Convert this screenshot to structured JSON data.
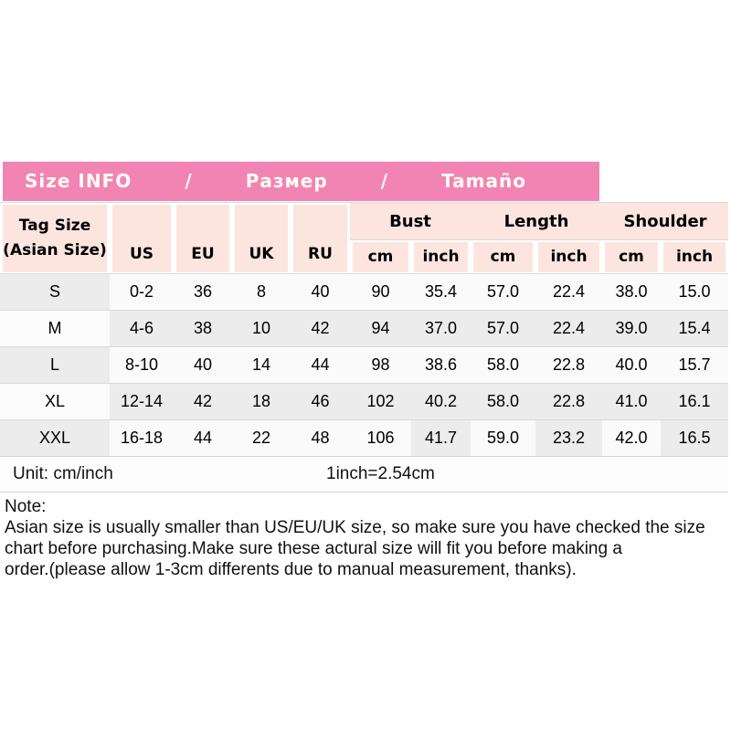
{
  "title_bar": {
    "parts": [
      "Size INFO",
      "/",
      "Размер",
      "/",
      "Tamaño"
    ]
  },
  "table": {
    "corner_header": "Tag Size\n(Asian Size)",
    "size_columns": [
      "US",
      "EU",
      "UK",
      "RU"
    ],
    "groups": [
      "Bust",
      "Length",
      "Shoulder"
    ],
    "sub_headers": [
      "cm",
      "inch",
      "cm",
      "inch",
      "cm",
      "inch"
    ],
    "rows": [
      [
        "S",
        "0-2",
        "36",
        "8",
        "40",
        "90",
        "35.4",
        "57.0",
        "22.4",
        "38.0",
        "15.0"
      ],
      [
        "M",
        "4-6",
        "38",
        "10",
        "42",
        "94",
        "37.0",
        "57.0",
        "22.4",
        "39.0",
        "15.4"
      ],
      [
        "L",
        "8-10",
        "40",
        "14",
        "44",
        "98",
        "38.6",
        "58.0",
        "22.8",
        "40.0",
        "15.7"
      ],
      [
        "XL",
        "12-14",
        "42",
        "18",
        "46",
        "102",
        "40.2",
        "58.0",
        "22.8",
        "41.0",
        "16.1"
      ],
      [
        "XXL",
        "16-18",
        "44",
        "22",
        "48",
        "106",
        "41.7",
        "59.0",
        "23.2",
        "42.0",
        "16.5"
      ]
    ]
  },
  "footer": {
    "unit_label": "Unit: cm/inch",
    "conversion": "1inch=2.54cm"
  },
  "note": {
    "heading": "Note:",
    "body": "Asian size is usually smaller than US/EU/UK size, so make sure you have checked the size\nchart before purchasing.Make sure these actural size will fit you before making a\norder.(please allow 1-3cm differents due to manual measurement, thanks)."
  },
  "colors": {
    "title_bar_pink": "#f284b3",
    "header_cell_pink": "#fce5de",
    "cell_gray": "#ececec",
    "cell_white": "#fafafa",
    "grid_line": "#dadada"
  }
}
